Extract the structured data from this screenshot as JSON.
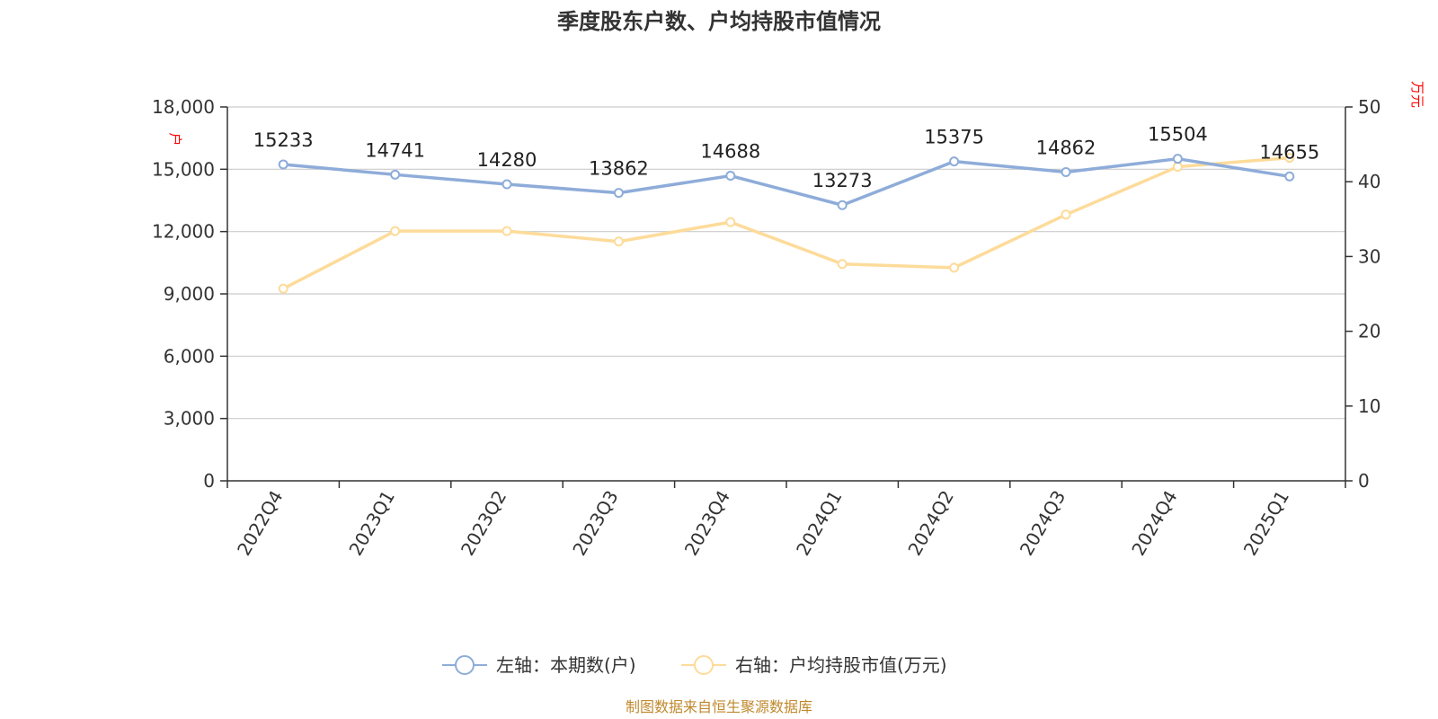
{
  "chart_data": {
    "type": "line",
    "title": "季度股东户数、户均持股市值情况",
    "categories": [
      "2022Q4",
      "2023Q1",
      "2023Q2",
      "2023Q3",
      "2023Q4",
      "2024Q1",
      "2024Q2",
      "2024Q3",
      "2024Q4",
      "2025Q1"
    ],
    "series": [
      {
        "name": "左轴：本期数(户)",
        "axis": "left",
        "color": "#8eacd9",
        "values": [
          15233,
          14741,
          14280,
          13862,
          14688,
          13273,
          15375,
          14862,
          15504,
          14655
        ],
        "labels": [
          "15233",
          "14741",
          "14280",
          "13862",
          "14688",
          "13273",
          "15375",
          "14862",
          "15504",
          "14655"
        ]
      },
      {
        "name": "右轴：户均持股市值(万元)",
        "axis": "right",
        "color": "#fddb9a",
        "values": [
          25.7,
          33.4,
          33.4,
          32.0,
          34.6,
          29.0,
          28.5,
          35.6,
          42.0,
          43.2
        ]
      }
    ],
    "left_axis": {
      "unit": "户",
      "ylim": [
        0,
        18000
      ],
      "ticks": [
        0,
        3000,
        6000,
        9000,
        12000,
        15000,
        18000
      ],
      "tick_labels": [
        "0",
        "3,000",
        "6,000",
        "9,000",
        "12,000",
        "15,000",
        "18,000"
      ]
    },
    "right_axis": {
      "unit": "万元",
      "ylim": [
        0,
        50
      ],
      "ticks": [
        0,
        10,
        20,
        30,
        40,
        50
      ],
      "tick_labels": [
        "0",
        "10",
        "20",
        "30",
        "40",
        "50"
      ]
    },
    "grid": true,
    "legend_position": "bottom-center",
    "source": "制图数据来自恒生聚源数据库"
  }
}
